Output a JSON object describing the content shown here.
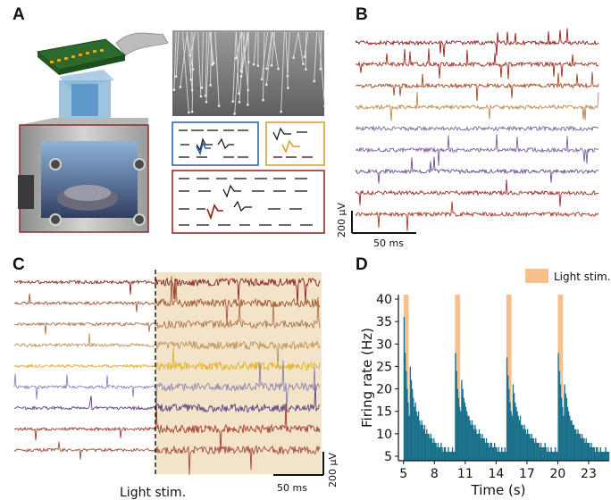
{
  "figure": {
    "panels": {
      "a": {
        "letter": "A"
      },
      "b": {
        "letter": "B",
        "scale_voltage": "200 µV",
        "scale_time": "50 ms",
        "trace_colors": [
          "#8c1c1c",
          "#9b2a1c",
          "#9e4a26",
          "#b98a4e",
          "#6e6a9a",
          "#7b5d9e",
          "#6a4a90",
          "#9c2a2a",
          "#a53524"
        ]
      },
      "c": {
        "letter": "C",
        "scale_voltage": "200 µV",
        "scale_time": "50 ms",
        "stim_label": "Light stim.",
        "trace_colors": [
          "#8e1b1b",
          "#a0542e",
          "#b0744a",
          "#c09058",
          "#e0b020",
          "#8a82b0",
          "#5c3c80",
          "#a03a2a",
          "#a04a3a"
        ],
        "highlight_color": "#f3e3c8"
      },
      "d": {
        "letter": "D"
      }
    }
  },
  "chart_data": {
    "type": "bar",
    "xlabel": "Time (s)",
    "ylabel": "Firing rate (Hz)",
    "xlim": [
      4.5,
      25
    ],
    "ylim": [
      4,
      41
    ],
    "xticks": [
      "5",
      "8",
      "11",
      "14",
      "17",
      "20",
      "23"
    ],
    "yticks": [
      "5",
      "10",
      "15",
      "20",
      "25",
      "30",
      "35",
      "40"
    ],
    "legend": {
      "label": "Light stim.",
      "placement": "top-right"
    },
    "bar_color": "#19708a",
    "stim_color": "#f5c08c",
    "stim_intervals": [
      [
        5.0,
        5.5
      ],
      [
        10.0,
        10.5
      ],
      [
        15.0,
        15.5
      ],
      [
        20.0,
        20.5
      ]
    ],
    "bin_width": 0.1,
    "series": [
      {
        "x": [
          5.0,
          5.1,
          5.2,
          5.3,
          5.4,
          5.5,
          5.6,
          5.7,
          5.8,
          5.9,
          6.0,
          6.1,
          6.2,
          6.3,
          6.4,
          6.5,
          6.6,
          6.7,
          6.8,
          6.9,
          7.0,
          7.1,
          7.2,
          7.3,
          7.4,
          7.5,
          7.6,
          7.7,
          7.8,
          7.9,
          8.0,
          8.1,
          8.2,
          8.3,
          8.4,
          8.5,
          8.6,
          8.7,
          8.8,
          8.9,
          9.0,
          9.1,
          9.2,
          9.3,
          9.4,
          9.5,
          9.6,
          9.7,
          9.8,
          9.9,
          10.0,
          10.1,
          10.2,
          10.3,
          10.4,
          10.5,
          10.6,
          10.7,
          10.8,
          10.9,
          11.0,
          11.1,
          11.2,
          11.3,
          11.4,
          11.5,
          11.6,
          11.7,
          11.8,
          11.9,
          12.0,
          12.1,
          12.2,
          12.3,
          12.4,
          12.5,
          12.6,
          12.7,
          12.8,
          12.9,
          13.0,
          13.1,
          13.2,
          13.3,
          13.4,
          13.5,
          13.6,
          13.7,
          13.8,
          13.9,
          14.0,
          14.1,
          14.2,
          14.3,
          14.4,
          14.5,
          14.6,
          14.7,
          14.8,
          14.9,
          15.0,
          15.1,
          15.2,
          15.3,
          15.4,
          15.5,
          15.6,
          15.7,
          15.8,
          15.9,
          16.0,
          16.1,
          16.2,
          16.3,
          16.4,
          16.5,
          16.6,
          16.7,
          16.8,
          16.9,
          17.0,
          17.1,
          17.2,
          17.3,
          17.4,
          17.5,
          17.6,
          17.7,
          17.8,
          17.9,
          18.0,
          18.1,
          18.2,
          18.3,
          18.4,
          18.5,
          18.6,
          18.7,
          18.8,
          18.9,
          19.0,
          19.1,
          19.2,
          19.3,
          19.4,
          19.5,
          19.6,
          19.7,
          19.8,
          19.9,
          20.0,
          20.1,
          20.2,
          20.3,
          20.4,
          20.5,
          20.6,
          20.7,
          20.8,
          20.9,
          21.0,
          21.1,
          21.2,
          21.3,
          21.4,
          21.5,
          21.6,
          21.7,
          21.8,
          21.9,
          22.0,
          22.1,
          22.2,
          22.3,
          22.4,
          22.5,
          22.6,
          22.7,
          22.8,
          22.9,
          23.0,
          23.1,
          23.2,
          23.3,
          23.4,
          23.5,
          23.6,
          23.7,
          23.8,
          23.9,
          24.0,
          24.1,
          24.2,
          24.3,
          24.4,
          24.5,
          24.6,
          24.7,
          24.8,
          24.9
        ],
        "values": [
          36,
          28,
          24,
          20,
          17,
          14,
          25,
          22,
          20,
          18,
          16,
          17,
          15,
          14,
          15,
          13,
          12,
          13,
          12,
          11,
          12,
          10,
          11,
          10,
          10,
          9,
          10,
          9,
          8,
          9,
          8,
          8,
          7,
          8,
          7,
          7,
          8,
          7,
          6,
          7,
          7,
          6,
          6,
          7,
          6,
          6,
          6,
          7,
          6,
          6,
          28,
          24,
          20,
          18,
          16,
          15,
          22,
          20,
          18,
          17,
          16,
          15,
          14,
          14,
          13,
          12,
          13,
          12,
          11,
          12,
          11,
          10,
          10,
          11,
          10,
          9,
          10,
          9,
          9,
          8,
          9,
          8,
          8,
          7,
          8,
          8,
          7,
          7,
          8,
          7,
          7,
          6,
          7,
          6,
          6,
          7,
          6,
          6,
          7,
          6,
          27,
          23,
          20,
          17,
          15,
          14,
          21,
          19,
          17,
          16,
          15,
          14,
          13,
          14,
          12,
          12,
          11,
          12,
          11,
          10,
          11,
          10,
          10,
          9,
          10,
          9,
          9,
          8,
          9,
          8,
          8,
          8,
          7,
          8,
          7,
          7,
          7,
          8,
          7,
          6,
          7,
          6,
          6,
          7,
          6,
          6,
          6,
          7,
          6,
          6,
          28,
          24,
          21,
          18,
          16,
          14,
          21,
          19,
          18,
          16,
          15,
          14,
          13,
          13,
          12,
          12,
          11,
          11,
          10,
          11,
          10,
          10,
          9,
          10,
          9,
          9,
          8,
          9,
          8,
          8,
          8,
          7,
          8,
          7,
          7,
          7,
          6,
          7,
          7,
          6,
          6,
          7,
          6,
          6,
          6,
          6,
          7,
          6,
          6,
          6
        ]
      }
    ]
  }
}
